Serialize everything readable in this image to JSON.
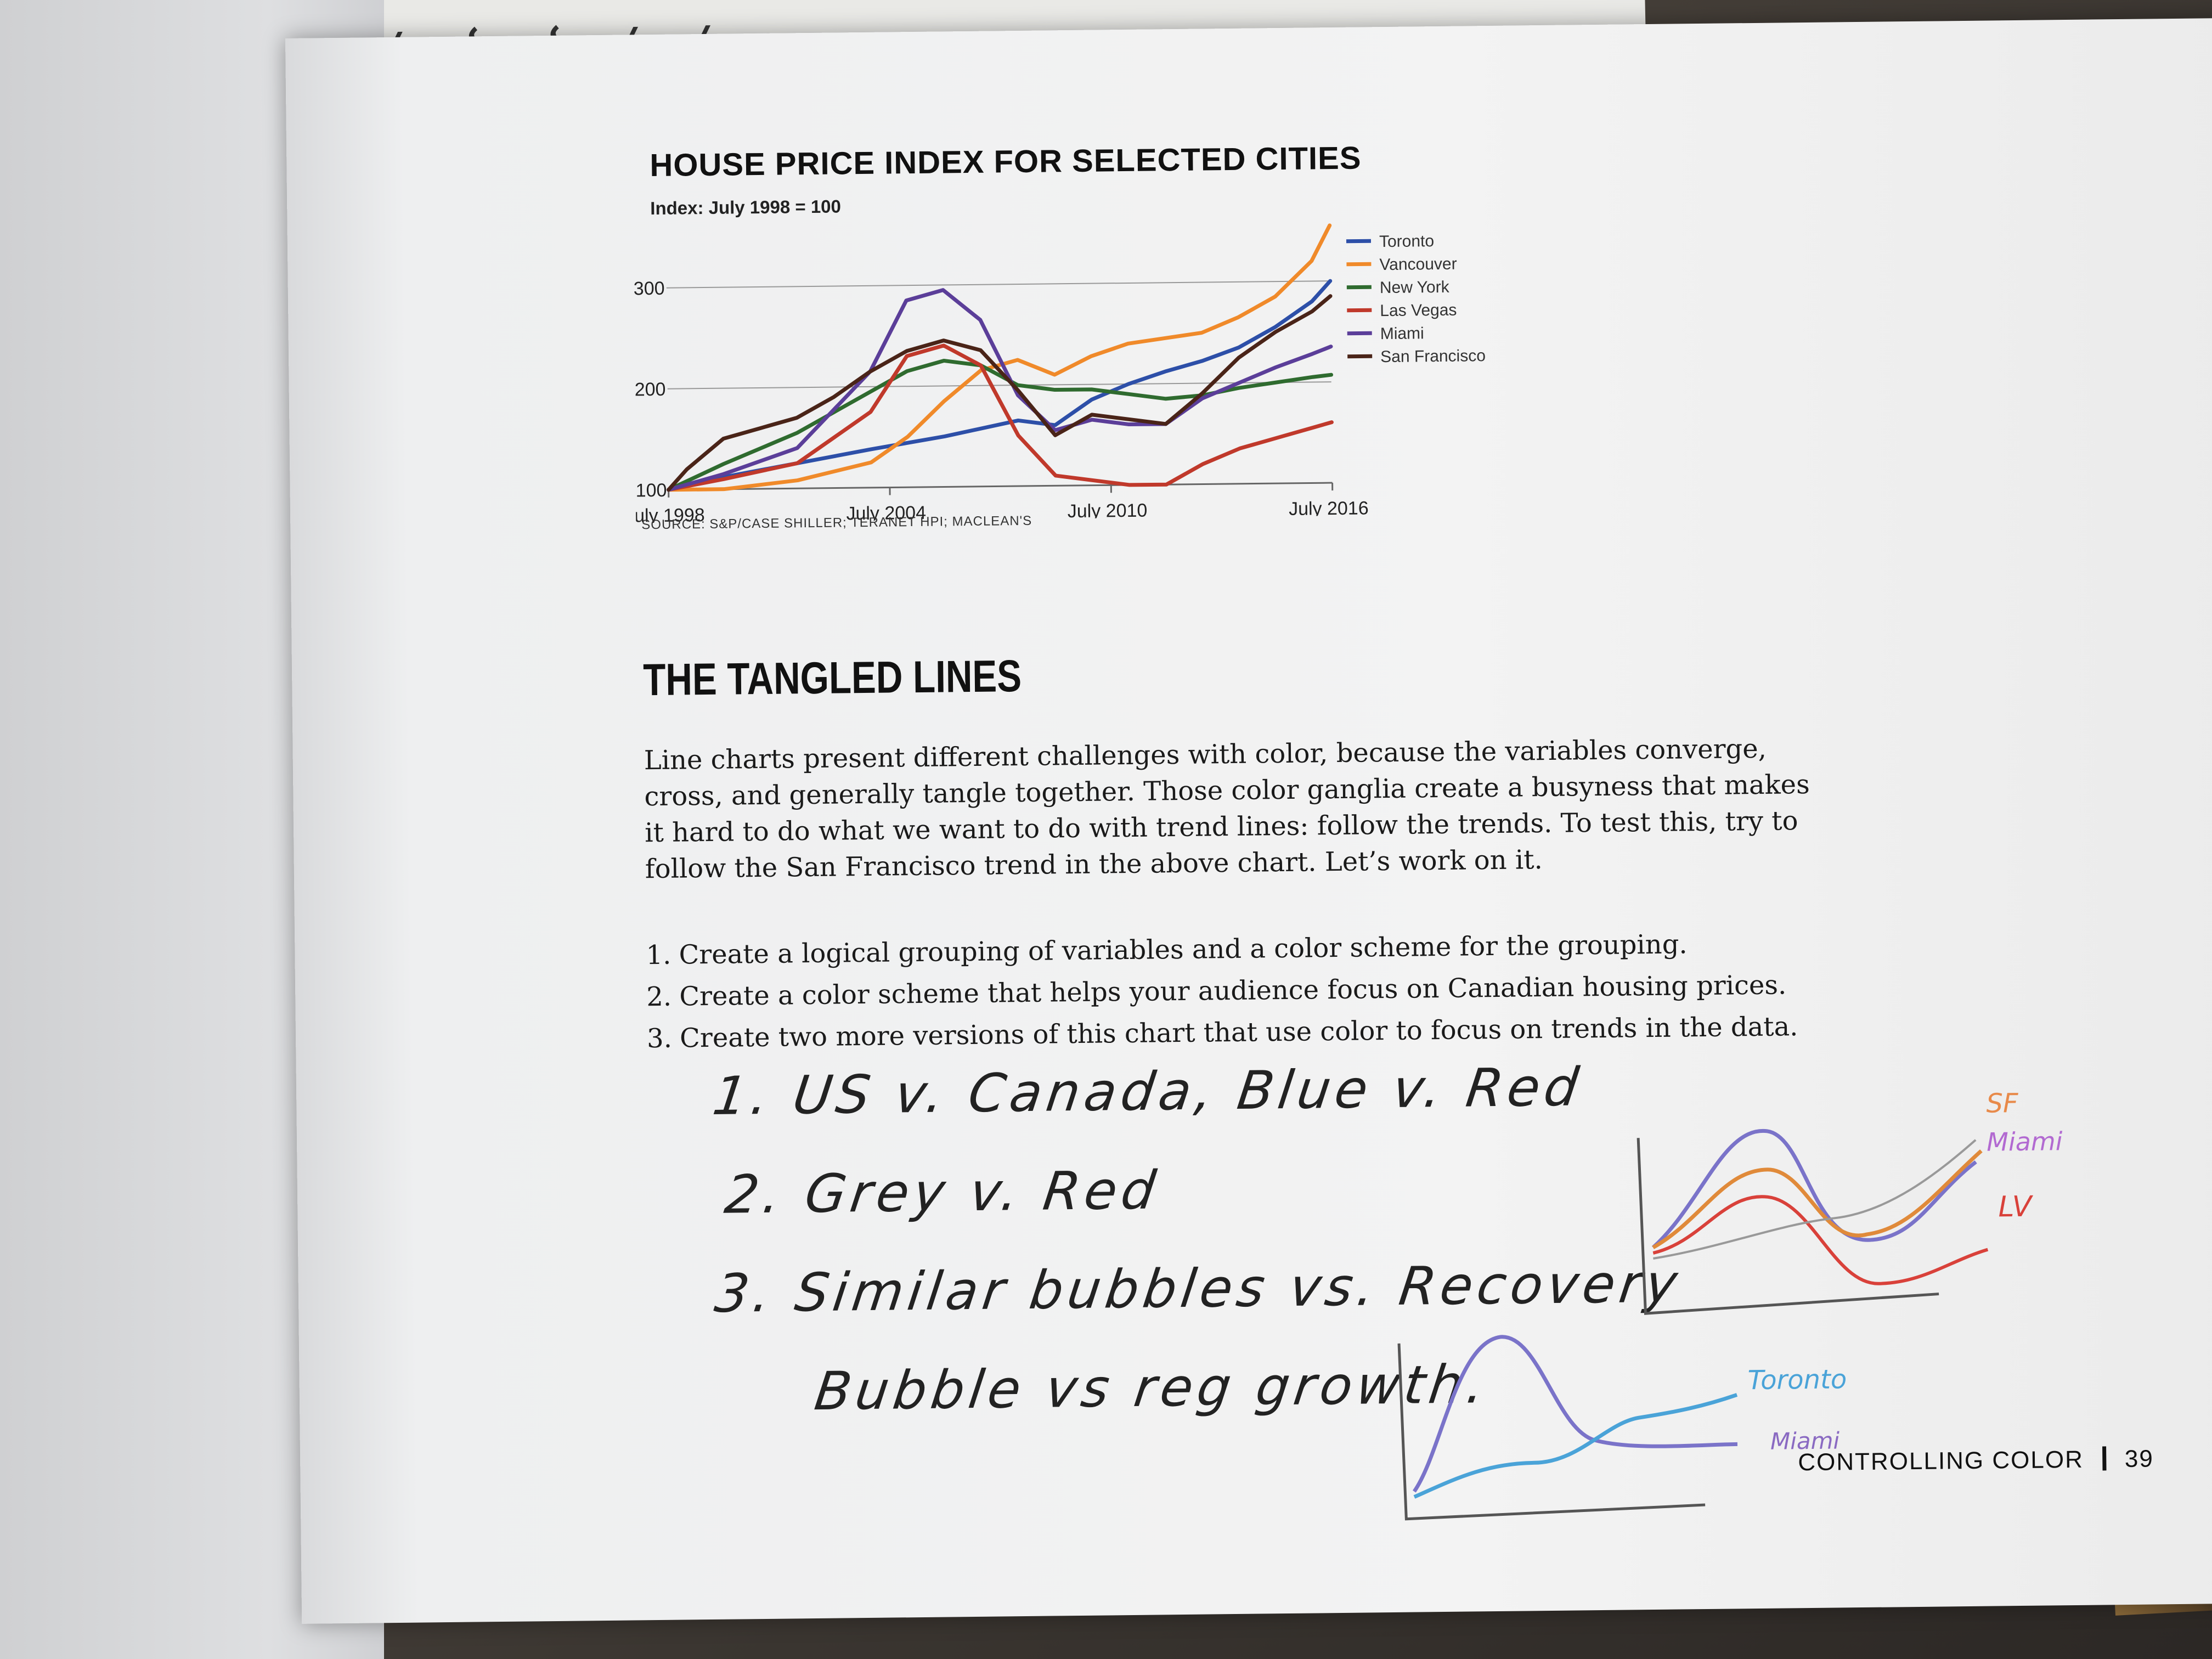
{
  "book_page": {
    "chart": {
      "title": "HOUSE PRICE INDEX FOR SELECTED CITIES",
      "subtitle": "Index: July 1998 = 100",
      "source": "SOURCE: S&P/CASE SHILLER; TERANET HPI; MACLEAN'S"
    },
    "section_title": "THE TANGLED LINES",
    "paragraph": "Line charts present different challenges with color, because the variables converge, cross, and generally tangle together. Those color ganglia create a busyness that makes it hard to do what we want to do with trend lines: follow the trends. To test this, try to follow the San Francisco trend in the above chart. Let’s work on it.",
    "steps": [
      {
        "num": "1.",
        "text": "Create a logical grouping of variables and a color scheme for the grouping."
      },
      {
        "num": "2.",
        "text": "Create a color scheme that helps your audience focus on Canadian housing prices."
      },
      {
        "num": "3.",
        "text": "Create two more versions of this chart that use color to focus on trends in the data."
      }
    ],
    "footer": {
      "section": "CONTROLLING COLOR",
      "page_number": "39"
    }
  },
  "handwritten_notes": {
    "line1": "1. US v. Canada, Blue v. Red",
    "line2": "2. Grey v. Red",
    "line3": "3. Similar bubbles vs. Recovery",
    "line4": "Bubble vs reg growth.",
    "sketch_labels": {
      "sf": "SF",
      "miami_top": "Miami",
      "lv": "LV",
      "toronto": "Toronto",
      "miami_bottom": "Miami"
    }
  },
  "chart_data": {
    "type": "line",
    "title": "HOUSE PRICE INDEX FOR SELECTED CITIES",
    "subtitle": "Index: July 1998 = 100",
    "x_ticks": [
      "July 1998",
      "July 2004",
      "July 2010",
      "July 2016"
    ],
    "xlim": [
      1998.5,
      2016.5
    ],
    "y_ticks": [
      100,
      200,
      300
    ],
    "ylim": [
      100,
      350
    ],
    "grid": true,
    "legend_position": "top-right",
    "series": [
      {
        "name": "Toronto",
        "color": "#2d4fa8",
        "x": [
          1998.5,
          2000,
          2002,
          2004,
          2006,
          2008,
          2009,
          2010,
          2011,
          2012,
          2013,
          2014,
          2015,
          2016,
          2016.5
        ],
        "y": [
          100,
          112,
          125,
          138,
          150,
          165,
          160,
          185,
          200,
          212,
          222,
          235,
          255,
          280,
          300
        ]
      },
      {
        "name": "Vancouver",
        "color": "#f08a2a",
        "x": [
          1998.5,
          2000,
          2002,
          2004,
          2005,
          2006,
          2007,
          2008,
          2009,
          2010,
          2011,
          2012,
          2013,
          2014,
          2015,
          2016,
          2016.5
        ],
        "y": [
          100,
          100,
          108,
          125,
          150,
          185,
          215,
          225,
          210,
          228,
          240,
          245,
          250,
          265,
          285,
          320,
          355
        ]
      },
      {
        "name": "New York",
        "color": "#2f6b2f",
        "x": [
          1998.5,
          2000,
          2002,
          2004,
          2005,
          2006,
          2007,
          2008,
          2009,
          2010,
          2011,
          2012,
          2013,
          2014,
          2015,
          2016,
          2016.5
        ],
        "y": [
          100,
          125,
          155,
          195,
          215,
          225,
          220,
          200,
          195,
          195,
          190,
          185,
          188,
          195,
          200,
          205,
          207
        ]
      },
      {
        "name": "Las Vegas",
        "color": "#c0392b",
        "x": [
          1998.5,
          2000,
          2002,
          2004,
          2005,
          2006,
          2007,
          2008,
          2009,
          2010,
          2011,
          2012,
          2013,
          2014,
          2015,
          2016,
          2016.5
        ],
        "y": [
          100,
          110,
          125,
          175,
          230,
          240,
          220,
          150,
          110,
          105,
          100,
          100,
          120,
          135,
          145,
          155,
          160
        ]
      },
      {
        "name": "Miami",
        "color": "#5b3e99",
        "x": [
          1998.5,
          2000,
          2002,
          2004,
          2005,
          2006,
          2007,
          2008,
          2009,
          2010,
          2011,
          2012,
          2013,
          2014,
          2015,
          2016,
          2016.5
        ],
        "y": [
          100,
          115,
          140,
          215,
          285,
          295,
          265,
          190,
          155,
          165,
          160,
          160,
          185,
          200,
          215,
          228,
          235
        ]
      },
      {
        "name": "San Francisco",
        "color": "#4a2418",
        "x": [
          1998.5,
          1999,
          2000,
          2001,
          2002,
          2003,
          2004,
          2005,
          2006,
          2007,
          2008,
          2009,
          2010,
          2011,
          2012,
          2013,
          2014,
          2015,
          2016,
          2016.5
        ],
        "y": [
          100,
          120,
          150,
          160,
          170,
          190,
          215,
          235,
          245,
          235,
          195,
          150,
          170,
          165,
          160,
          190,
          225,
          250,
          270,
          285
        ]
      }
    ]
  }
}
